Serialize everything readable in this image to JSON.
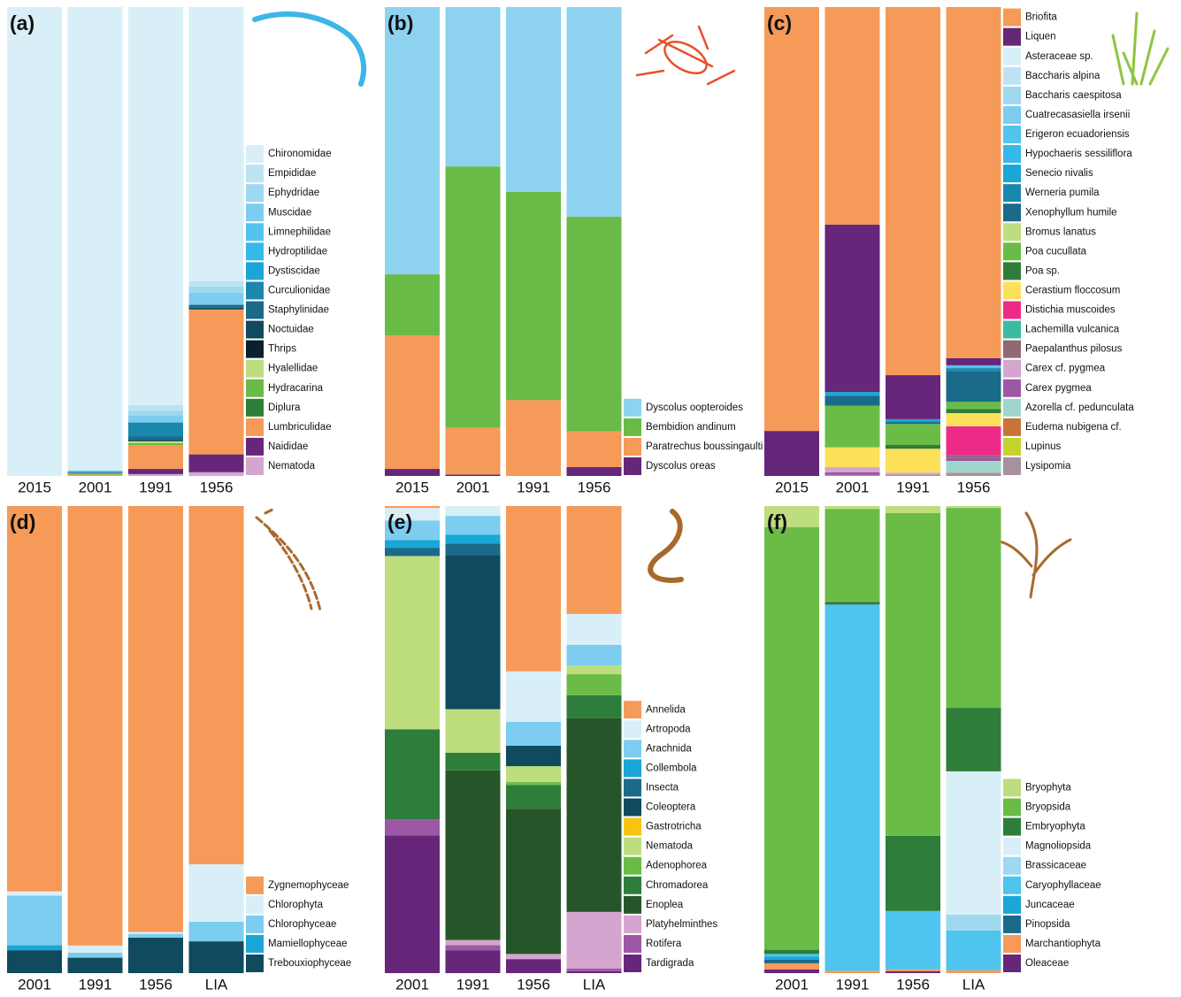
{
  "chart_data": [
    {
      "type": "bar",
      "stacked": true,
      "label": "(a)",
      "ylim": [
        0,
        100
      ],
      "legend": "right",
      "categories": [
        "2015",
        "2001",
        "1991",
        "1956"
      ],
      "series": [
        {
          "name": "Chironomidae",
          "color": "#d9eff8",
          "values": [
            100,
            98.8,
            84.9,
            58.5
          ]
        },
        {
          "name": "Empididae",
          "color": "#bde3f3",
          "values": [
            0,
            0,
            1.1,
            1.1
          ]
        },
        {
          "name": "Ephydridae",
          "color": "#9fd8ef",
          "values": [
            0,
            0,
            1.1,
            1.3
          ]
        },
        {
          "name": "Muscidae",
          "color": "#7ccdef",
          "values": [
            0,
            0.3,
            1.5,
            2.6
          ]
        },
        {
          "name": "Limnephilidae",
          "color": "#55c3ee",
          "values": [
            0,
            0,
            0,
            0
          ]
        },
        {
          "name": "Hydroptilidae",
          "color": "#35b8ea",
          "values": [
            0,
            0,
            0,
            0
          ]
        },
        {
          "name": "Dystiscidae",
          "color": "#1aa6d6",
          "values": [
            0,
            0,
            0,
            0
          ]
        },
        {
          "name": "Curculionidae",
          "color": "#1a88ad",
          "values": [
            0,
            0.3,
            3.0,
            0
          ]
        },
        {
          "name": "Staphylinidae",
          "color": "#1b6a89",
          "values": [
            0,
            0,
            0.6,
            0.6
          ]
        },
        {
          "name": "Noctuidae",
          "color": "#0f4a5e",
          "values": [
            0,
            0,
            0.4,
            0.4
          ]
        },
        {
          "name": "Thrips",
          "color": "#08212c",
          "values": [
            0,
            0,
            0,
            0
          ]
        },
        {
          "name": "Hyalellidae",
          "color": "#bedd7e",
          "values": [
            0,
            0,
            0.4,
            0
          ]
        },
        {
          "name": "Hydracarina",
          "color": "#6bbb47",
          "values": [
            0,
            0.3,
            0.4,
            0
          ]
        },
        {
          "name": "Diplura",
          "color": "#2e7d3a",
          "values": [
            0,
            0,
            0,
            0
          ]
        },
        {
          "name": "Lumbriculidae",
          "color": "#f59a58",
          "values": [
            0,
            0.3,
            5.1,
            30.9
          ]
        },
        {
          "name": "Naididae",
          "color": "#66267a",
          "values": [
            0,
            0,
            1.1,
            3.8
          ]
        },
        {
          "name": "Nematoda",
          "color": "#d4a6cf",
          "values": [
            0,
            0,
            0.4,
            0.8
          ]
        }
      ]
    },
    {
      "type": "bar",
      "stacked": true,
      "label": "(b)",
      "ylim": [
        0,
        100
      ],
      "legend": "right",
      "categories": [
        "2015",
        "2001",
        "1991",
        "1956"
      ],
      "series": [
        {
          "name": "Dyscolus oopteroides",
          "color": "#8dd3f0",
          "values": [
            57.0,
            34.0,
            39.4,
            44.7
          ]
        },
        {
          "name": "Bembidion andinum",
          "color": "#6aba47",
          "values": [
            13.0,
            55.7,
            44.4,
            45.8
          ]
        },
        {
          "name": "Paratrechus boussingaulti",
          "color": "#f59a58",
          "values": [
            28.5,
            10.0,
            16.2,
            7.6
          ]
        },
        {
          "name": "Dyscolus oreas",
          "color": "#66267a",
          "values": [
            1.5,
            0.3,
            0,
            1.9
          ]
        }
      ]
    },
    {
      "type": "bar",
      "stacked": true,
      "label": "(c)",
      "ylim": [
        0,
        100
      ],
      "legend": "right",
      "categories": [
        "2015",
        "2001",
        "1991",
        "1956"
      ],
      "series": [
        {
          "name": "Briofita",
          "color": "#f59a58",
          "values": [
            90.4,
            46.4,
            78.5,
            74.9
          ]
        },
        {
          "name": "Liquen",
          "color": "#66267a",
          "values": [
            9.6,
            35.7,
            9.4,
            1.5
          ]
        },
        {
          "name": "Asteraceae sp.",
          "color": "#d9eff8",
          "values": [
            0,
            0,
            0,
            0
          ]
        },
        {
          "name": "Baccharis alpina",
          "color": "#bde3f3",
          "values": [
            0,
            0,
            0,
            0
          ]
        },
        {
          "name": "Baccharis caespitosa",
          "color": "#9fd8ef",
          "values": [
            0,
            0,
            0,
            0
          ]
        },
        {
          "name": "Cuatrecasasiella irsenii",
          "color": "#7ccdef",
          "values": [
            0,
            0,
            0,
            0
          ]
        },
        {
          "name": "Erigeron ecuadoriensis",
          "color": "#55c3ee",
          "values": [
            0,
            0,
            0,
            0.6
          ]
        },
        {
          "name": "Hypochaeris sessiliflora",
          "color": "#35b8ea",
          "values": [
            0,
            0,
            0,
            0
          ]
        },
        {
          "name": "Senecio nivalis",
          "color": "#1aa6d6",
          "values": [
            0,
            0.8,
            0.6,
            0
          ]
        },
        {
          "name": "Werneria pumila",
          "color": "#1a88ad",
          "values": [
            0,
            0,
            0,
            0.6
          ]
        },
        {
          "name": "Xenophyllum humile",
          "color": "#1b6a89",
          "values": [
            0,
            2.1,
            0.4,
            6.6
          ]
        },
        {
          "name": "Bromus lanatus",
          "color": "#bedd7e",
          "values": [
            0,
            0,
            0,
            0
          ]
        },
        {
          "name": "Poa cucullata",
          "color": "#6bbb47",
          "values": [
            0,
            8.9,
            4.5,
            1.5
          ]
        },
        {
          "name": "Poa sp.",
          "color": "#2e7d3a",
          "values": [
            0,
            0,
            0.8,
            0.9
          ]
        },
        {
          "name": "Cerastium floccosum",
          "color": "#fde05a",
          "values": [
            0,
            4.2,
            5.1,
            2.8
          ]
        },
        {
          "name": "Distichia muscoides",
          "color": "#ed2b87",
          "values": [
            0,
            0,
            0,
            6.2
          ]
        },
        {
          "name": "Lachemilla vulcanica",
          "color": "#3dbba0",
          "values": [
            0,
            0,
            0,
            0
          ]
        },
        {
          "name": "Paepalanthus pilosus",
          "color": "#8f6a72",
          "values": [
            0,
            0,
            0,
            0.6
          ]
        },
        {
          "name": "Carex cf. pygmea",
          "color": "#d4a6cf",
          "values": [
            0,
            1.1,
            0.4,
            0
          ]
        },
        {
          "name": "Carex pygmea",
          "color": "#9c57a5",
          "values": [
            0,
            0.6,
            0,
            0.6
          ]
        },
        {
          "name": "Azorella cf. pedunculata",
          "color": "#9ed6cc",
          "values": [
            0,
            0,
            0,
            2.5
          ]
        },
        {
          "name": "Eudema nubigena cf.",
          "color": "#c8733a",
          "values": [
            0,
            0,
            0,
            0
          ]
        },
        {
          "name": "Lupinus",
          "color": "#c6d32c",
          "values": [
            0,
            0,
            0,
            0
          ]
        },
        {
          "name": "Lysipomia",
          "color": "#a8919f",
          "values": [
            0,
            0.2,
            0.3,
            0.7
          ]
        }
      ]
    },
    {
      "type": "bar",
      "stacked": true,
      "label": "(d)",
      "ylim": [
        0,
        100
      ],
      "legend": "right",
      "categories": [
        "2001",
        "1991",
        "1956",
        "LIA"
      ],
      "series": [
        {
          "name": "Zygnemophyceae",
          "color": "#f59a58",
          "values": [
            82.5,
            94.1,
            91.2,
            76.7
          ]
        },
        {
          "name": "Chlorophyta",
          "color": "#d9eff8",
          "values": [
            0.9,
            1.5,
            0.4,
            12.3
          ]
        },
        {
          "name": "Chlorophyceae",
          "color": "#7ccdef",
          "values": [
            10.6,
            1.1,
            0.8,
            4.2
          ]
        },
        {
          "name": "Mamiellophyceae",
          "color": "#1aa6d6",
          "values": [
            1.1,
            0,
            0,
            0
          ]
        },
        {
          "name": "Trebouxiophyceae",
          "color": "#0f4a5e",
          "values": [
            4.9,
            3.3,
            7.6,
            6.8
          ]
        }
      ]
    },
    {
      "type": "bar",
      "stacked": true,
      "label": "(e)",
      "ylim": [
        0,
        100
      ],
      "legend": "right",
      "categories": [
        "2001",
        "1991",
        "1956",
        "LIA"
      ],
      "series": [
        {
          "name": "Annelida",
          "color": "#f59a58",
          "values": [
            0.4,
            0,
            35.4,
            23.1
          ]
        },
        {
          "name": "Artropoda",
          "color": "#d9eff8",
          "values": [
            2.7,
            2.1,
            10.8,
            6.6
          ]
        },
        {
          "name": "Arachnida",
          "color": "#7ccdef",
          "values": [
            4.2,
            4.0,
            5.1,
            4.4
          ]
        },
        {
          "name": "Collembola",
          "color": "#1aa6d6",
          "values": [
            1.7,
            1.9,
            0,
            0
          ]
        },
        {
          "name": "Insecta",
          "color": "#1b6a89",
          "values": [
            1.7,
            2.5,
            0,
            0
          ]
        },
        {
          "name": "Coleoptera",
          "color": "#0f4a5e",
          "values": [
            0,
            33.0,
            4.4,
            0
          ]
        },
        {
          "name": "Gastrotricha",
          "color": "#f7c411",
          "values": [
            0,
            0,
            0,
            0
          ]
        },
        {
          "name": "Nematoda",
          "color": "#bedd7e",
          "values": [
            37.1,
            9.3,
            3.4,
            1.9
          ]
        },
        {
          "name": "Adenophorea",
          "color": "#6bbb47",
          "values": [
            0,
            0,
            0.6,
            4.5
          ]
        },
        {
          "name": "Chromadorea",
          "color": "#2e7d3a",
          "values": [
            19.3,
            3.8,
            5.1,
            4.9
          ]
        },
        {
          "name": "Enoplea",
          "color": "#27552a",
          "values": [
            0,
            36.3,
            31.1,
            41.5
          ]
        },
        {
          "name": "Platyhelminthes",
          "color": "#d4a6cf",
          "values": [
            0,
            1.1,
            1.1,
            12.1
          ]
        },
        {
          "name": "Rotifera",
          "color": "#9c57a5",
          "values": [
            3.4,
            1.1,
            0,
            0.6
          ]
        },
        {
          "name": "Tardigrada",
          "color": "#66267a",
          "values": [
            29.5,
            4.9,
            3.0,
            0.4
          ]
        }
      ]
    },
    {
      "type": "bar",
      "stacked": true,
      "label": "(f)",
      "ylim": [
        0,
        100
      ],
      "legend": "right",
      "categories": [
        "2001",
        "1991",
        "1956",
        "LIA"
      ],
      "series": [
        {
          "name": "Bryophyta",
          "color": "#bedd7e",
          "values": [
            4.5,
            0.6,
            1.5,
            0.4
          ]
        },
        {
          "name": "Bryopsida",
          "color": "#6bbb47",
          "values": [
            90.5,
            19.9,
            69.1,
            42.8
          ]
        },
        {
          "name": "Embryophyta",
          "color": "#2e7d3a",
          "values": [
            0.9,
            0.6,
            16.1,
            13.6
          ]
        },
        {
          "name": "Magnoliopsida",
          "color": "#d9eff8",
          "values": [
            0,
            0,
            0,
            30.7
          ]
        },
        {
          "name": "Brassicaceae",
          "color": "#9fd8ef",
          "values": [
            0,
            0,
            0,
            3.4
          ]
        },
        {
          "name": "Caryophyllaceae",
          "color": "#4fc4ee",
          "values": [
            0.6,
            78.4,
            12.5,
            8.5
          ]
        },
        {
          "name": "Juncaceae",
          "color": "#1aa6d6",
          "values": [
            0.6,
            0,
            0,
            0
          ]
        },
        {
          "name": "Pinopsida",
          "color": "#1b6a89",
          "values": [
            0.8,
            0,
            0,
            0
          ]
        },
        {
          "name": "Marchantiophyta",
          "color": "#f59a58",
          "values": [
            1.3,
            0.5,
            0.4,
            0.6
          ]
        },
        {
          "name": "Oleaceae",
          "color": "#66267a",
          "values": [
            0.8,
            0,
            0.4,
            0
          ]
        }
      ]
    }
  ]
}
